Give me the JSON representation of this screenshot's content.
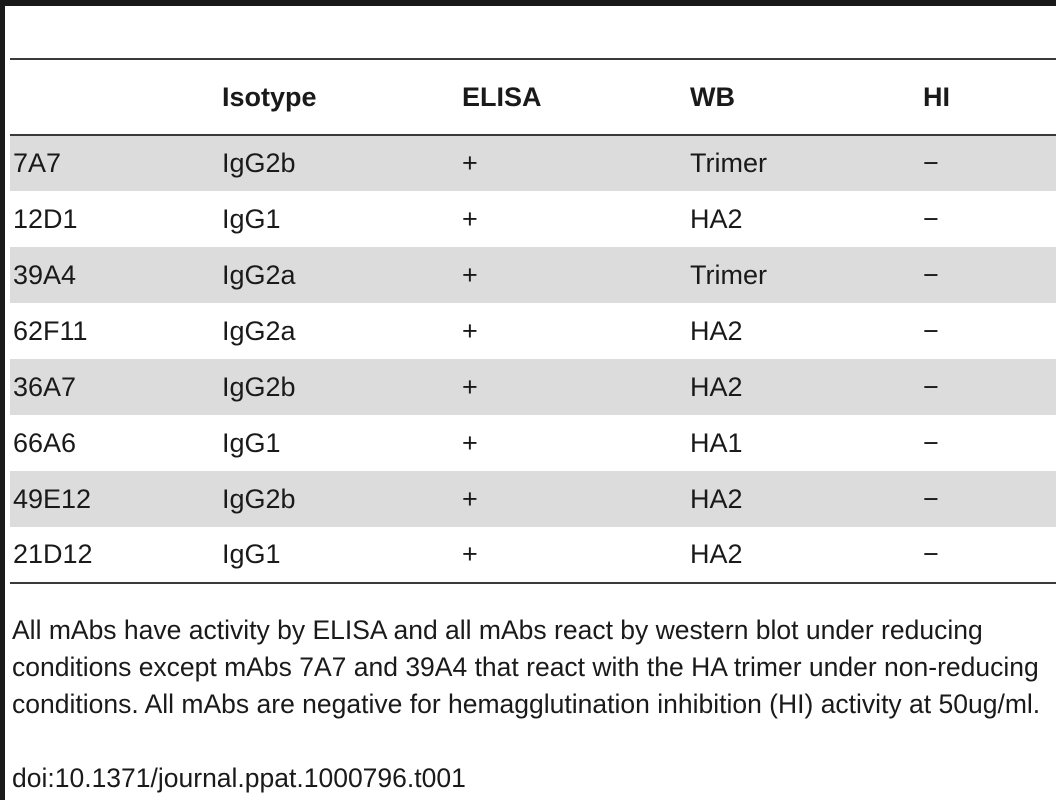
{
  "table": {
    "headers": [
      "",
      "Isotype",
      "ELISA",
      "WB",
      "HI"
    ],
    "rows": [
      {
        "id": "7A7",
        "isotype": "IgG2b",
        "elisa": "+",
        "wb": "Trimer",
        "hi": "−"
      },
      {
        "id": "12D1",
        "isotype": "IgG1",
        "elisa": "+",
        "wb": "HA2",
        "hi": "−"
      },
      {
        "id": "39A4",
        "isotype": "IgG2a",
        "elisa": "+",
        "wb": "Trimer",
        "hi": "−"
      },
      {
        "id": "62F11",
        "isotype": "IgG2a",
        "elisa": "+",
        "wb": "HA2",
        "hi": "−"
      },
      {
        "id": "36A7",
        "isotype": "IgG2b",
        "elisa": "+",
        "wb": "HA2",
        "hi": "−"
      },
      {
        "id": "66A6",
        "isotype": "IgG1",
        "elisa": "+",
        "wb": "HA1",
        "hi": "−"
      },
      {
        "id": "49E12",
        "isotype": "IgG2b",
        "elisa": "+",
        "wb": "HA2",
        "hi": "−"
      },
      {
        "id": "21D12",
        "isotype": "IgG1",
        "elisa": "+",
        "wb": "HA2",
        "hi": "−"
      }
    ]
  },
  "footnote": "All mAbs have activity by ELISA and all mAbs react by western blot under reducing conditions except mAbs 7A7 and 39A4 that react with the HA trimer under non-reducing conditions. All mAbs are negative for hemagglutination inhibition (HI) activity at 50ug/ml.",
  "doi": "doi:10.1371/journal.ppat.1000796.t001",
  "colors": {
    "row_shade": "#dcdcdc",
    "rule": "#3a3a3a",
    "text": "#1a1a1a"
  }
}
